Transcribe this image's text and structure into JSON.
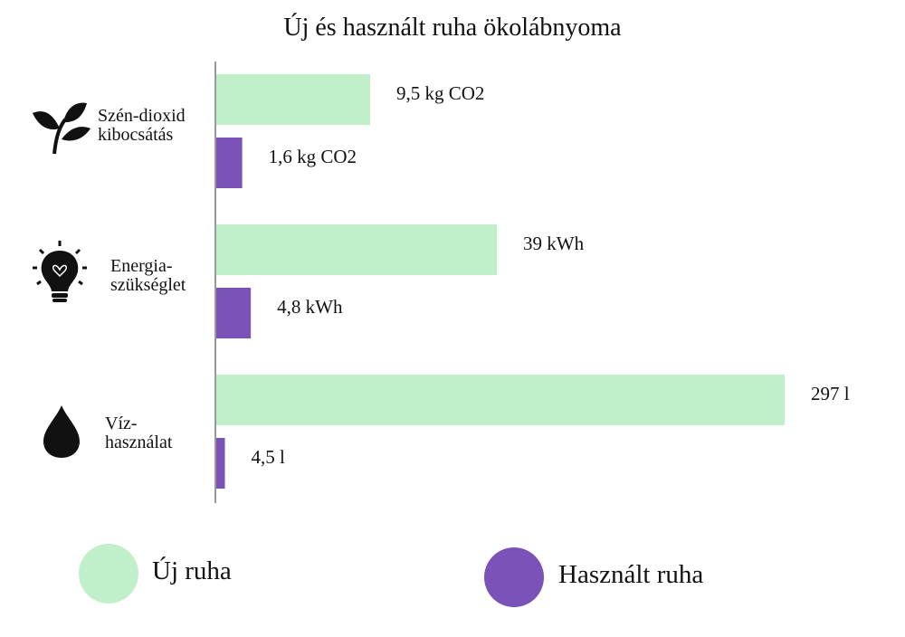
{
  "chart_data": {
    "type": "bar",
    "orientation": "horizontal",
    "title": "Új és használt ruha ökolábnyoma",
    "categories": [
      "Szén-dioxid\nkibocsátás",
      "Energia-\nszükséglet",
      "Víz-\nhasználat"
    ],
    "series": [
      {
        "name": "Új ruha",
        "color": "#c0efc9",
        "values": [
          9.5,
          39,
          297
        ],
        "value_labels": [
          "9,5 kg CO2",
          "39 kWh",
          "297 l"
        ]
      },
      {
        "name": "Használt ruha",
        "color": "#7b52b8",
        "values": [
          1.6,
          4.8,
          4.5
        ],
        "value_labels": [
          "1,6 kg CO2",
          "4,8 kWh",
          "4,5 l"
        ]
      }
    ]
  }
}
